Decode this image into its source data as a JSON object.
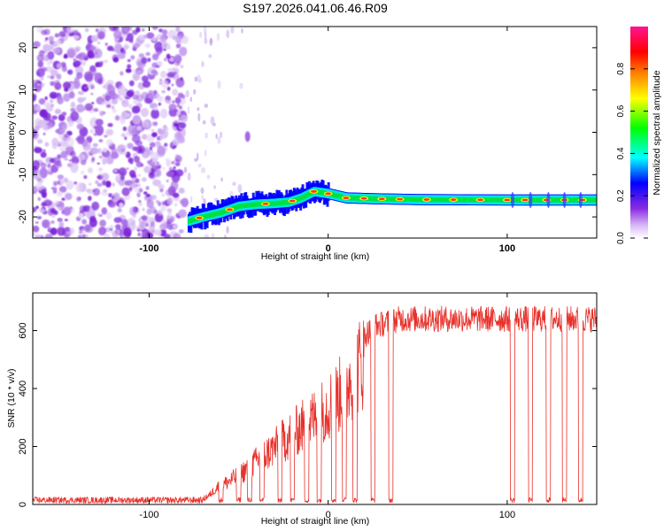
{
  "title": "S197.2026.041.06.46.R09",
  "chart_data": [
    {
      "type": "heatmap",
      "name": "spectrogram",
      "xlabel": "Height of straight line (km)",
      "ylabel": "Frequency (Hz)",
      "xlim": [
        -165,
        150
      ],
      "ylim": [
        -25,
        25
      ],
      "xticks": [
        -100,
        0,
        100
      ],
      "xtick_labels": [
        "-100",
        "0",
        "100"
      ],
      "yticks": [
        -20,
        -10,
        0,
        10,
        20
      ],
      "ytick_labels": [
        "-20",
        "-10",
        "0",
        "10",
        "20"
      ],
      "grid": false,
      "noise_region_x": [
        -165,
        -80
      ],
      "noise_speckles_x": [
        -80,
        -48
      ],
      "isolated_blob": {
        "x": -45,
        "freq": -1
      },
      "signal_track": [
        {
          "x": -78,
          "freq": -21
        },
        {
          "x": -70,
          "freq": -20
        },
        {
          "x": -60,
          "freq": -19
        },
        {
          "x": -50,
          "freq": -17.5
        },
        {
          "x": -40,
          "freq": -17
        },
        {
          "x": -30,
          "freq": -16.8
        },
        {
          "x": -22,
          "freq": -16.5
        },
        {
          "x": -15,
          "freq": -15.5
        },
        {
          "x": -8,
          "freq": -14
        },
        {
          "x": 0,
          "freq": -14.5
        },
        {
          "x": 10,
          "freq": -15.5
        },
        {
          "x": 25,
          "freq": -15.7
        },
        {
          "x": 50,
          "freq": -15.9
        },
        {
          "x": 100,
          "freq": -16
        },
        {
          "x": 150,
          "freq": -16
        }
      ],
      "colorbar": {
        "label": "Normalized spectral amplitude",
        "range": [
          0,
          1
        ],
        "ticks": [
          0.0,
          0.2,
          0.4,
          0.6,
          0.8
        ],
        "tick_labels": [
          "0.0",
          "0.2",
          "0.4",
          "0.6",
          "0.8"
        ],
        "colors": [
          "#ffffff",
          "#8a2be2",
          "#0000ff",
          "#00ffff",
          "#00ff00",
          "#ffff00",
          "#ff7f00",
          "#ff0000",
          "#ff1493"
        ]
      }
    },
    {
      "type": "line",
      "name": "snr",
      "xlabel": "Height of straight line (km)",
      "ylabel": "SNR (10 * v/v)",
      "xlim": [
        -165,
        150
      ],
      "ylim": [
        0,
        730
      ],
      "xticks": [
        -100,
        0,
        100
      ],
      "xtick_labels": [
        "-100",
        "0",
        "100"
      ],
      "yticks": [
        0,
        200,
        400,
        600
      ],
      "ytick_labels": [
        "0",
        "200",
        "400",
        "600"
      ],
      "grid": false,
      "series": [
        {
          "name": "SNR",
          "color": "#e8302a",
          "profile": [
            {
              "x": -165,
              "y": 15
            },
            {
              "x": -70,
              "y": 15
            },
            {
              "x": -66,
              "y": 40
            },
            {
              "x": -62,
              "y": 70
            },
            {
              "x": -55,
              "y": 95
            },
            {
              "x": -48,
              "y": 130
            },
            {
              "x": -40,
              "y": 175
            },
            {
              "x": -30,
              "y": 230
            },
            {
              "x": -22,
              "y": 275
            },
            {
              "x": -14,
              "y": 320
            },
            {
              "x": -6,
              "y": 360
            },
            {
              "x": 0,
              "y": 400
            },
            {
              "x": 6,
              "y": 440
            },
            {
              "x": 12,
              "y": 510
            },
            {
              "x": 18,
              "y": 570
            },
            {
              "x": 26,
              "y": 615
            },
            {
              "x": 40,
              "y": 640
            },
            {
              "x": 150,
              "y": 640
            }
          ],
          "dropouts_x": [
            -60,
            -50,
            -44,
            -37,
            -27,
            -20,
            -12,
            -5,
            3,
            9,
            15,
            25,
            35,
            103,
            113,
            123,
            132,
            141
          ]
        }
      ]
    }
  ]
}
